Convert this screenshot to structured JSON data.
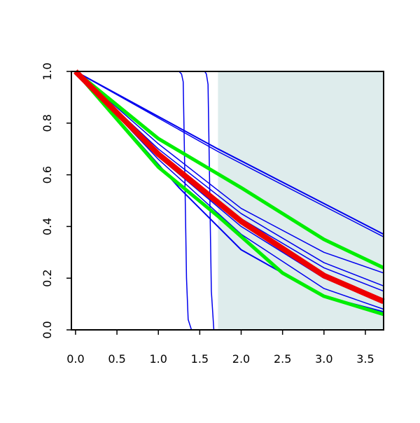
{
  "chart_data": {
    "type": "line",
    "title": "",
    "xlabel": "",
    "ylabel": "",
    "xlim": [
      -0.05,
      3.72
    ],
    "ylim": [
      0,
      1
    ],
    "x_ticks": [
      "0.0",
      "0.5",
      "1.0",
      "1.5",
      "2.0",
      "2.5",
      "3.0",
      "3.5"
    ],
    "y_ticks": [
      "0.0",
      "0.2",
      "0.4",
      "0.6",
      "0.8",
      "1.0"
    ],
    "grid": false,
    "legend": "none",
    "shaded_region": {
      "x_start": 1.72,
      "x_end": 3.72,
      "color": "#deecec"
    },
    "colors": {
      "blue": "#0000ee",
      "green": "#00ee00",
      "red": "#ee0000"
    },
    "series": [
      {
        "color": "#0000ee",
        "width": 2,
        "x": [
          0,
          1.72,
          3.72
        ],
        "y": [
          1.0,
          0.7,
          0.37
        ]
      },
      {
        "color": "#0000ee",
        "width": 1.5,
        "x": [
          0,
          1.72,
          3.72
        ],
        "y": [
          1.0,
          0.69,
          0.36
        ]
      },
      {
        "color": "#0000ee",
        "width": 1.5,
        "x": [
          0,
          1,
          2,
          3,
          3.72
        ],
        "y": [
          1.0,
          0.72,
          0.47,
          0.3,
          0.22
        ]
      },
      {
        "color": "#0000ee",
        "width": 1.5,
        "x": [
          0,
          1,
          2,
          3,
          3.72
        ],
        "y": [
          1.0,
          0.7,
          0.45,
          0.26,
          0.17
        ]
      },
      {
        "color": "#0000ee",
        "width": 1.5,
        "x": [
          0,
          1,
          2,
          3,
          3.72
        ],
        "y": [
          1.0,
          0.68,
          0.43,
          0.24,
          0.15
        ]
      },
      {
        "color": "#0000ee",
        "width": 1.5,
        "x": [
          0,
          1,
          2,
          3,
          3.72
        ],
        "y": [
          1.0,
          0.67,
          0.4,
          0.2,
          0.12
        ]
      },
      {
        "color": "#0000ee",
        "width": 1.5,
        "x": [
          0,
          1,
          2,
          3,
          3.72
        ],
        "y": [
          1.0,
          0.66,
          0.37,
          0.16,
          0.08
        ]
      },
      {
        "color": "#0000ee",
        "width": 2,
        "x": [
          0,
          1,
          1.25,
          1.5,
          2,
          3,
          3.72
        ],
        "y": [
          1.0,
          0.64,
          0.55,
          0.47,
          0.31,
          0.13,
          0.07
        ]
      },
      {
        "color": "#0000ee",
        "width": 1.5,
        "x": [
          0,
          1.25,
          1.28,
          1.3,
          1.32,
          1.34,
          1.36,
          1.4,
          3.72
        ],
        "y": [
          1.0,
          1.0,
          0.99,
          0.96,
          0.6,
          0.2,
          0.04,
          0.0,
          0.0
        ]
      },
      {
        "color": "#0000ee",
        "width": 1.5,
        "x": [
          0,
          1.56,
          1.58,
          1.6,
          1.62,
          1.64,
          1.67,
          3.72
        ],
        "y": [
          1.0,
          1.0,
          0.99,
          0.95,
          0.55,
          0.15,
          0.0,
          0.0
        ]
      },
      {
        "color": "#00ee00",
        "width": 5,
        "x": [
          0,
          1,
          2,
          3,
          3.72
        ],
        "y": [
          1.0,
          0.74,
          0.55,
          0.35,
          0.24
        ]
      },
      {
        "color": "#00ee00",
        "width": 5,
        "x": [
          0,
          1,
          1.72,
          2.5,
          3,
          3.72
        ],
        "y": [
          1.0,
          0.63,
          0.44,
          0.22,
          0.13,
          0.06
        ]
      },
      {
        "color": "#ee0000",
        "width": 8,
        "x": [
          0,
          1,
          2,
          3,
          3.72
        ],
        "y": [
          1.0,
          0.68,
          0.42,
          0.21,
          0.11
        ]
      }
    ]
  }
}
